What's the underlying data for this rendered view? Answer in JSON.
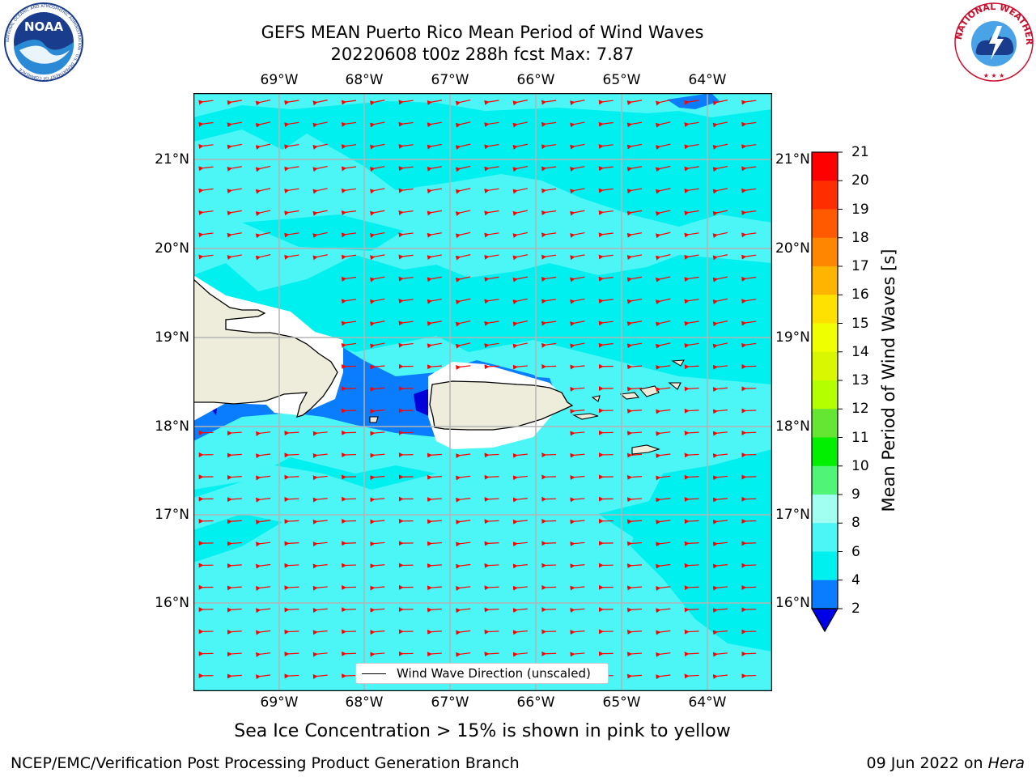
{
  "header": {
    "title_line1": "GEFS MEAN Puerto Rico Mean Period of Wind Waves",
    "title_line2": "20220608 t00z 288h fcst   Max: 7.87"
  },
  "logos": {
    "left": "NOAA",
    "left_ring": "NATIONAL OCEANIC AND ATMOSPHERIC ADMINISTRATION · U.S. DEPARTMENT OF COMMERCE",
    "right_ring": "NATIONAL WEATHER SERVICE"
  },
  "map": {
    "lon_labels": [
      "69°W",
      "68°W",
      "67°W",
      "66°W",
      "65°W",
      "64°W"
    ],
    "lat_labels": [
      "21°N",
      "20°N",
      "19°N",
      "18°N",
      "17°N",
      "16°N"
    ],
    "legend_label": "Wind Wave Direction (unscaled)",
    "colors": {
      "land": "#eeecdb",
      "ocean_4_6": "#00f0f0",
      "ocean_6_8": "#4df6f6",
      "ocean_2_4": "#0a7dff",
      "ocean_lt2": "#0000d8",
      "arrow": "#ff0000",
      "grid": "#b4b4b4"
    }
  },
  "colorbar": {
    "label": "Mean Period of Wind Waves [s]",
    "ticks": [
      "21",
      "20",
      "19",
      "18",
      "17",
      "16",
      "15",
      "14",
      "13",
      "12",
      "11",
      "10",
      "9",
      "8",
      "6",
      "4",
      "2"
    ],
    "colors": [
      "#ff0000",
      "#ff2d00",
      "#ff5a00",
      "#ff8700",
      "#ffb400",
      "#ffe100",
      "#f0ff00",
      "#d8f700",
      "#b4ff00",
      "#64e632",
      "#00f000",
      "#50f578",
      "#a0fff0",
      "#4df6f6",
      "#00f0f0",
      "#0a7dff",
      "#0000e6"
    ]
  },
  "note": "Sea Ice Concentration > 15% is shown in pink to yellow",
  "footer": {
    "left": "NCEP/EMC/Verification Post Processing Product Generation Branch",
    "right_date": "09 Jun 2022 on ",
    "right_host": "Hera"
  }
}
